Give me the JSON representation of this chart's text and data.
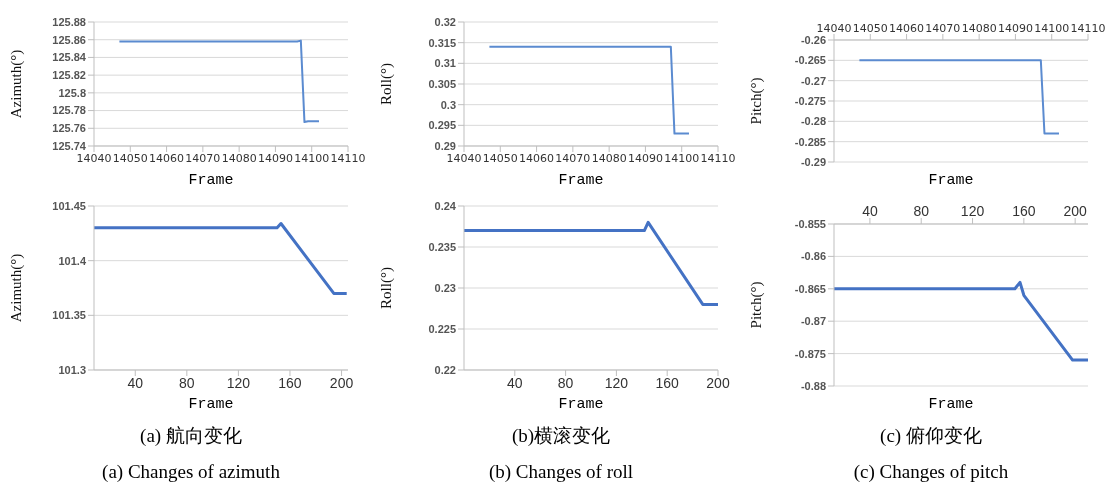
{
  "chart_data": [
    {
      "type": "line",
      "xlabel": "Frame",
      "ylabel": "Azimuth(°)",
      "xlim": [
        14040,
        14110
      ],
      "xticks": [
        14040,
        14050,
        14060,
        14070,
        14080,
        14090,
        14100,
        14110
      ],
      "ylim": [
        125.74,
        125.88
      ],
      "yticks": [
        125.74,
        125.76,
        125.78,
        125.8,
        125.82,
        125.84,
        125.86,
        125.88
      ],
      "grid": "y",
      "marker": "none",
      "series": [
        {
          "color": "#5b8bd0",
          "x": [
            14047,
            14096,
            14097,
            14098,
            14099,
            14102
          ],
          "values": [
            125.858,
            125.858,
            125.859,
            125.767,
            125.768,
            125.768
          ]
        }
      ]
    },
    {
      "type": "line",
      "xlabel": "Frame",
      "ylabel": "Roll(°)",
      "xlim": [
        14040,
        14110
      ],
      "xticks": [
        14040,
        14050,
        14060,
        14070,
        14080,
        14090,
        14100,
        14110
      ],
      "ylim": [
        0.29,
        0.32
      ],
      "yticks": [
        0.29,
        0.295,
        0.3,
        0.305,
        0.31,
        0.315,
        0.32
      ],
      "grid": "y",
      "marker": "none",
      "series": [
        {
          "color": "#5b8bd0",
          "x": [
            14047,
            14096,
            14097,
            14098,
            14099,
            14102
          ],
          "values": [
            0.314,
            0.314,
            0.314,
            0.293,
            0.293,
            0.293
          ]
        }
      ]
    },
    {
      "type": "line",
      "xlabel": "Frame",
      "ylabel": "Pitch(°)",
      "xlim": [
        14040,
        14110
      ],
      "xticks": [
        14040,
        14050,
        14060,
        14070,
        14080,
        14090,
        14100,
        14110
      ],
      "ylim": [
        -0.29,
        -0.26
      ],
      "yticks": [
        -0.29,
        -0.285,
        -0.28,
        -0.275,
        -0.27,
        -0.265,
        -0.26
      ],
      "grid": "y",
      "marker": "none",
      "series": [
        {
          "color": "#5b8bd0",
          "x": [
            14047,
            14096,
            14097,
            14098,
            14099,
            14102
          ],
          "values": [
            -0.265,
            -0.265,
            -0.265,
            -0.283,
            -0.283,
            -0.283
          ]
        }
      ]
    },
    {
      "type": "line",
      "xlabel": "Frame",
      "ylabel": "Azimuth(°)",
      "xlim": [
        8,
        205
      ],
      "xticks": [
        40,
        80,
        120,
        160,
        200
      ],
      "ylim": [
        101.3,
        101.45
      ],
      "yticks": [
        101.3,
        101.35,
        101.4,
        101.45
      ],
      "grid": "y",
      "marker": "none",
      "annotations": [
        "(a)  航向变化",
        "(a) Changes of azimuth"
      ],
      "series": [
        {
          "color": "#4472c4",
          "x": [
            8,
            150,
            153,
            194,
            204
          ],
          "values": [
            101.43,
            101.43,
            101.434,
            101.37,
            101.37
          ]
        }
      ]
    },
    {
      "type": "line",
      "xlabel": "Frame",
      "ylabel": "Roll(°)",
      "xlim": [
        0,
        200
      ],
      "xticks": [
        40,
        80,
        120,
        160,
        200
      ],
      "ylim": [
        0.22,
        0.24
      ],
      "yticks": [
        0.22,
        0.225,
        0.23,
        0.235,
        0.24
      ],
      "grid": "y",
      "marker": "none",
      "annotations": [
        "(b)横滚变化",
        "(b) Changes of roll"
      ],
      "series": [
        {
          "color": "#4472c4",
          "x": [
            0,
            142,
            145,
            188,
            200
          ],
          "values": [
            0.237,
            0.237,
            0.238,
            0.228,
            0.228
          ]
        }
      ]
    },
    {
      "type": "line",
      "xlabel": "Frame",
      "ylabel": "Pitch(°)",
      "xlim": [
        12,
        210
      ],
      "xticks": [
        40,
        80,
        120,
        160,
        200
      ],
      "ylim": [
        -0.88,
        -0.855
      ],
      "yticks": [
        -0.88,
        -0.875,
        -0.87,
        -0.865,
        -0.86,
        -0.855
      ],
      "grid": "y",
      "marker": "none",
      "annotations": [
        "(c)  俯仰变化",
        "(c) Changes of pitch"
      ],
      "series": [
        {
          "color": "#4472c4",
          "x": [
            12,
            153,
            157,
            160,
            198,
            210
          ],
          "values": [
            -0.865,
            -0.865,
            -0.864,
            -0.866,
            -0.876,
            -0.876
          ]
        }
      ]
    }
  ]
}
